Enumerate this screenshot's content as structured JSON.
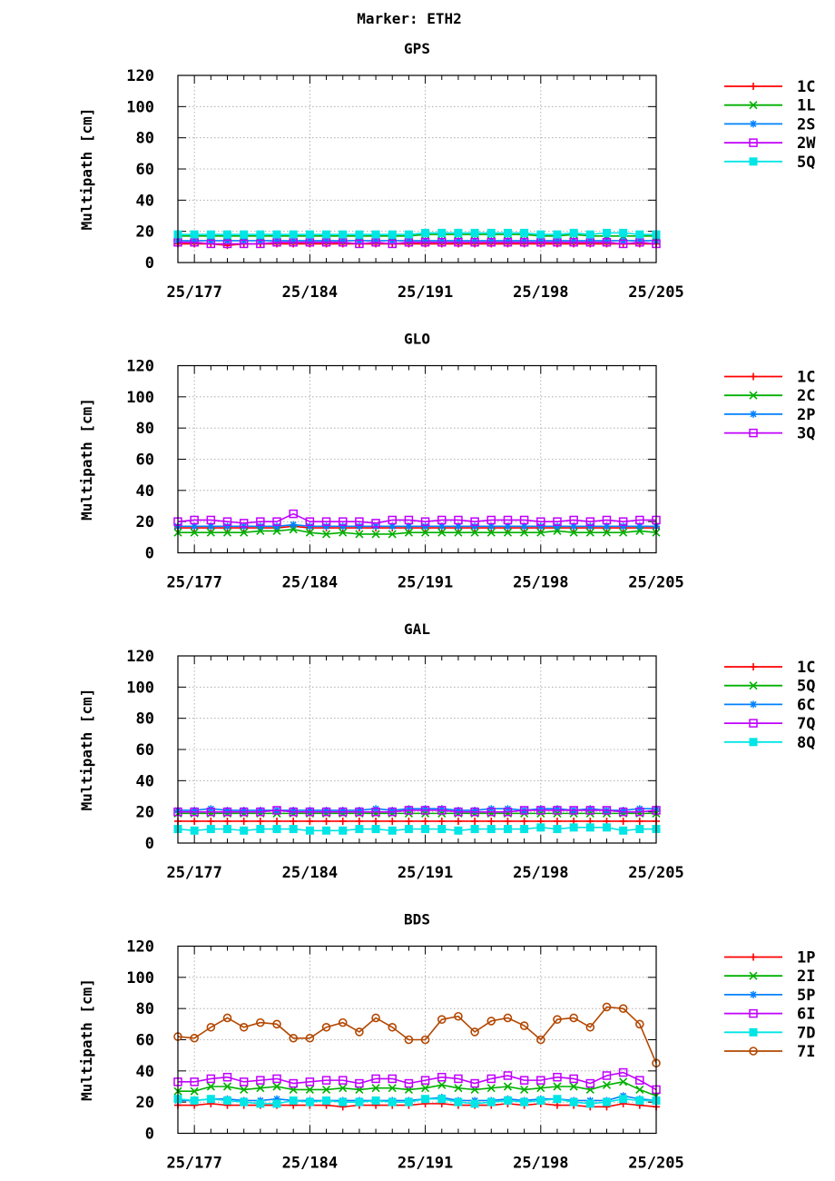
{
  "page_title": "Marker: ETH2",
  "colors": {
    "series_1": "#ff0000",
    "series_2": "#00b000",
    "series_3": "#0080ff",
    "series_4": "#c000ff",
    "series_5": "#00e5e5",
    "series_6": "#b34700",
    "grid": "#a0a0a0",
    "axis": "#000000"
  },
  "chart_data": [
    {
      "type": "line",
      "title": "GPS",
      "ylabel": "Multipath [cm]",
      "xlabel": "",
      "xlim": [
        176,
        205
      ],
      "ylim": [
        0,
        120
      ],
      "yticks": [
        0,
        20,
        40,
        60,
        80,
        100,
        120
      ],
      "xticks": [
        177,
        184,
        191,
        198,
        205
      ],
      "xtick_labels": [
        "25/177",
        "25/184",
        "25/191",
        "25/198",
        "25/205"
      ],
      "grid": true,
      "legend_position": "right",
      "x": [
        176,
        177,
        178,
        179,
        180,
        181,
        182,
        183,
        184,
        185,
        186,
        187,
        188,
        189,
        190,
        191,
        192,
        193,
        194,
        195,
        196,
        197,
        198,
        199,
        200,
        201,
        202,
        203,
        204,
        205
      ],
      "series": [
        {
          "name": "1C",
          "marker": "plus",
          "color": "#ff0000",
          "values": [
            12,
            12,
            12,
            11,
            12,
            12,
            12,
            12,
            12,
            12,
            12,
            12,
            12,
            12,
            12,
            12,
            12,
            12,
            12,
            12,
            12,
            12,
            12,
            12,
            12,
            12,
            12,
            12,
            12,
            12
          ]
        },
        {
          "name": "1L",
          "marker": "cross",
          "color": "#00b000",
          "values": [
            17,
            17,
            17,
            17,
            17,
            17,
            17,
            17,
            17,
            17,
            17,
            17,
            17,
            17,
            17,
            18,
            18,
            18,
            18,
            18,
            18,
            18,
            17,
            17,
            18,
            17,
            17,
            17,
            17,
            17
          ]
        },
        {
          "name": "2S",
          "marker": "star",
          "color": "#0080ff",
          "values": [
            14,
            14,
            14,
            14,
            14,
            14,
            14,
            14,
            14,
            14,
            14,
            14,
            14,
            14,
            14,
            14,
            14,
            14,
            14,
            14,
            14,
            14,
            14,
            14,
            14,
            14,
            14,
            14,
            14,
            14
          ]
        },
        {
          "name": "2W",
          "marker": "square",
          "color": "#c000ff",
          "values": [
            13,
            13,
            12,
            12,
            12,
            12,
            13,
            13,
            13,
            13,
            13,
            12,
            13,
            12,
            13,
            13,
            13,
            13,
            13,
            13,
            13,
            13,
            13,
            13,
            13,
            13,
            13,
            12,
            13,
            12
          ]
        },
        {
          "name": "5Q",
          "marker": "filled-square",
          "color": "#00e5e5",
          "values": [
            18,
            18,
            18,
            18,
            18,
            18,
            18,
            18,
            18,
            18,
            18,
            18,
            18,
            18,
            18,
            19,
            19,
            19,
            19,
            19,
            19,
            19,
            18,
            18,
            19,
            18,
            19,
            19,
            18,
            18
          ]
        }
      ]
    },
    {
      "type": "line",
      "title": "GLO",
      "ylabel": "Multipath [cm]",
      "xlabel": "",
      "xlim": [
        176,
        205
      ],
      "ylim": [
        0,
        120
      ],
      "yticks": [
        0,
        20,
        40,
        60,
        80,
        100,
        120
      ],
      "xticks": [
        177,
        184,
        191,
        198,
        205
      ],
      "xtick_labels": [
        "25/177",
        "25/184",
        "25/191",
        "25/198",
        "25/205"
      ],
      "grid": true,
      "legend_position": "right",
      "x": [
        176,
        177,
        178,
        179,
        180,
        181,
        182,
        183,
        184,
        185,
        186,
        187,
        188,
        189,
        190,
        191,
        192,
        193,
        194,
        195,
        196,
        197,
        198,
        199,
        200,
        201,
        202,
        203,
        204,
        205
      ],
      "series": [
        {
          "name": "1C",
          "marker": "plus",
          "color": "#ff0000",
          "values": [
            16,
            16,
            16,
            16,
            16,
            16,
            16,
            17,
            16,
            16,
            16,
            16,
            16,
            16,
            16,
            16,
            16,
            16,
            16,
            16,
            16,
            16,
            16,
            16,
            16,
            16,
            16,
            16,
            16,
            16
          ]
        },
        {
          "name": "2C",
          "marker": "cross",
          "color": "#00b000",
          "values": [
            13,
            13,
            13,
            13,
            13,
            14,
            14,
            15,
            13,
            12,
            13,
            12,
            12,
            12,
            13,
            13,
            13,
            13,
            13,
            13,
            13,
            13,
            13,
            14,
            13,
            13,
            13,
            13,
            14,
            13
          ]
        },
        {
          "name": "2P",
          "marker": "star",
          "color": "#0080ff",
          "values": [
            17,
            17,
            17,
            17,
            17,
            17,
            17,
            18,
            17,
            17,
            17,
            17,
            17,
            17,
            17,
            17,
            17,
            17,
            17,
            17,
            17,
            17,
            17,
            17,
            17,
            17,
            17,
            17,
            17,
            17
          ]
        },
        {
          "name": "3Q",
          "marker": "square",
          "color": "#c000ff",
          "values": [
            20,
            21,
            21,
            20,
            19,
            20,
            20,
            25,
            20,
            20,
            20,
            20,
            19,
            21,
            21,
            20,
            21,
            21,
            20,
            21,
            21,
            21,
            20,
            20,
            21,
            20,
            21,
            20,
            21,
            21
          ]
        }
      ]
    },
    {
      "type": "line",
      "title": "GAL",
      "ylabel": "Multipath [cm]",
      "xlabel": "",
      "xlim": [
        176,
        205
      ],
      "ylim": [
        0,
        120
      ],
      "yticks": [
        0,
        20,
        40,
        60,
        80,
        100,
        120
      ],
      "xticks": [
        177,
        184,
        191,
        198,
        205
      ],
      "xtick_labels": [
        "25/177",
        "25/184",
        "25/191",
        "25/198",
        "25/205"
      ],
      "grid": true,
      "legend_position": "right",
      "x": [
        176,
        177,
        178,
        179,
        180,
        181,
        182,
        183,
        184,
        185,
        186,
        187,
        188,
        189,
        190,
        191,
        192,
        193,
        194,
        195,
        196,
        197,
        198,
        199,
        200,
        201,
        202,
        203,
        204,
        205
      ],
      "series": [
        {
          "name": "1C",
          "marker": "plus",
          "color": "#ff0000",
          "values": [
            14,
            14,
            14,
            14,
            14,
            14,
            14,
            14,
            14,
            14,
            14,
            14,
            14,
            14,
            14,
            14,
            14,
            14,
            14,
            14,
            14,
            14,
            14,
            14,
            14,
            14,
            14,
            14,
            14,
            14
          ]
        },
        {
          "name": "5Q",
          "marker": "cross",
          "color": "#00b000",
          "values": [
            19,
            19,
            19,
            19,
            19,
            19,
            19,
            19,
            19,
            19,
            19,
            19,
            19,
            19,
            19,
            19,
            19,
            19,
            19,
            19,
            19,
            19,
            19,
            19,
            19,
            19,
            19,
            19,
            19,
            19
          ]
        },
        {
          "name": "6C",
          "marker": "star",
          "color": "#0080ff",
          "values": [
            21,
            21,
            22,
            21,
            21,
            21,
            21,
            21,
            21,
            21,
            21,
            21,
            22,
            21,
            22,
            22,
            22,
            21,
            21,
            22,
            22,
            21,
            22,
            22,
            21,
            22,
            21,
            21,
            22,
            22
          ]
        },
        {
          "name": "7Q",
          "marker": "square",
          "color": "#c000ff",
          "values": [
            20,
            20,
            20,
            20,
            20,
            20,
            21,
            20,
            20,
            20,
            20,
            20,
            20,
            20,
            21,
            21,
            21,
            20,
            20,
            20,
            20,
            21,
            21,
            21,
            21,
            21,
            21,
            20,
            20,
            21
          ]
        },
        {
          "name": "8Q",
          "marker": "filled-square",
          "color": "#00e5e5",
          "values": [
            9,
            8,
            9,
            9,
            8,
            9,
            9,
            9,
            8,
            8,
            8,
            9,
            9,
            8,
            9,
            9,
            9,
            8,
            9,
            9,
            9,
            9,
            10,
            9,
            10,
            10,
            10,
            8,
            9,
            9
          ]
        }
      ]
    },
    {
      "type": "line",
      "title": "BDS",
      "ylabel": "Multipath [cm]",
      "xlabel": "",
      "xlim": [
        176,
        205
      ],
      "ylim": [
        0,
        120
      ],
      "yticks": [
        0,
        20,
        40,
        60,
        80,
        100,
        120
      ],
      "xticks": [
        177,
        184,
        191,
        198,
        205
      ],
      "xtick_labels": [
        "25/177",
        "25/184",
        "25/191",
        "25/198",
        "25/205"
      ],
      "grid": true,
      "legend_position": "right",
      "x": [
        176,
        177,
        178,
        179,
        180,
        181,
        182,
        183,
        184,
        185,
        186,
        187,
        188,
        189,
        190,
        191,
        192,
        193,
        194,
        195,
        196,
        197,
        198,
        199,
        200,
        201,
        202,
        203,
        204,
        205
      ],
      "series": [
        {
          "name": "1P",
          "marker": "plus",
          "color": "#ff0000",
          "values": [
            18,
            18,
            19,
            18,
            18,
            18,
            18,
            18,
            18,
            18,
            17,
            18,
            18,
            18,
            18,
            19,
            19,
            18,
            18,
            18,
            19,
            18,
            19,
            18,
            18,
            17,
            17,
            19,
            18,
            17
          ]
        },
        {
          "name": "2I",
          "marker": "cross",
          "color": "#00b000",
          "values": [
            27,
            27,
            30,
            30,
            28,
            29,
            30,
            28,
            28,
            28,
            29,
            28,
            29,
            29,
            28,
            29,
            31,
            29,
            28,
            29,
            30,
            28,
            29,
            30,
            30,
            28,
            31,
            33,
            28,
            24
          ]
        },
        {
          "name": "5P",
          "marker": "star",
          "color": "#0080ff",
          "values": [
            21,
            21,
            22,
            22,
            21,
            21,
            22,
            21,
            21,
            21,
            21,
            21,
            21,
            21,
            21,
            22,
            23,
            21,
            21,
            21,
            22,
            21,
            22,
            22,
            21,
            21,
            21,
            24,
            22,
            21
          ]
        },
        {
          "name": "6I",
          "marker": "square",
          "color": "#c000ff",
          "values": [
            33,
            33,
            35,
            36,
            33,
            34,
            35,
            32,
            33,
            34,
            34,
            32,
            35,
            35,
            32,
            34,
            36,
            35,
            32,
            35,
            37,
            34,
            34,
            36,
            35,
            32,
            37,
            39,
            34,
            28
          ]
        },
        {
          "name": "7D",
          "marker": "filled-square",
          "color": "#00e5e5",
          "values": [
            22,
            21,
            22,
            21,
            20,
            19,
            19,
            21,
            20,
            21,
            20,
            20,
            21,
            20,
            20,
            22,
            22,
            20,
            19,
            20,
            21,
            20,
            21,
            22,
            20,
            19,
            20,
            22,
            21,
            21
          ]
        },
        {
          "name": "7I",
          "marker": "circle",
          "color": "#b34700",
          "values": [
            62,
            61,
            68,
            74,
            68,
            71,
            70,
            61,
            61,
            68,
            71,
            65,
            74,
            68,
            60,
            60,
            73,
            75,
            65,
            72,
            74,
            69,
            60,
            73,
            74,
            68,
            81,
            80,
            70,
            45
          ]
        }
      ]
    }
  ]
}
